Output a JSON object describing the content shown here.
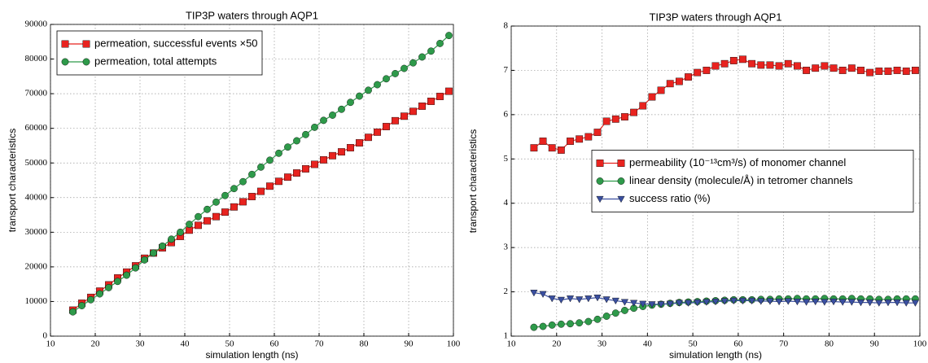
{
  "chart_data": [
    {
      "type": "line",
      "title": "TIP3P waters through AQP1",
      "xlabel": "simulation length (ns)",
      "ylabel": "transport characteristics",
      "x": [
        15,
        17,
        19,
        21,
        23,
        25,
        27,
        29,
        31,
        33,
        35,
        37,
        39,
        41,
        43,
        45,
        47,
        49,
        51,
        53,
        55,
        57,
        59,
        61,
        63,
        65,
        67,
        69,
        71,
        73,
        75,
        77,
        79,
        81,
        83,
        85,
        87,
        89,
        91,
        93,
        95,
        97,
        99
      ],
      "series": [
        {
          "name": "permeation, successful events ×50",
          "color": "#e8231f",
          "marker": "square",
          "values": [
            7500,
            9500,
            11200,
            13000,
            14800,
            16800,
            18500,
            20300,
            22500,
            24000,
            25500,
            27000,
            28800,
            30600,
            32000,
            33300,
            34500,
            35800,
            37300,
            38800,
            40300,
            41800,
            43300,
            44700,
            45900,
            47100,
            48300,
            49600,
            50900,
            52100,
            53200,
            54400,
            55800,
            57400,
            58900,
            60500,
            62200,
            63500,
            64900,
            66400,
            67800,
            69200,
            70700
          ]
        },
        {
          "name": "permeation, total attempts",
          "color": "#2e9a4a",
          "marker": "circle",
          "values": [
            7000,
            8800,
            10500,
            12200,
            14000,
            15800,
            17600,
            19700,
            22000,
            24000,
            26000,
            28000,
            30000,
            32300,
            34500,
            36600,
            38700,
            40600,
            42600,
            44600,
            46700,
            48800,
            50800,
            52800,
            54600,
            56400,
            58200,
            60300,
            62300,
            63800,
            65500,
            67500,
            69300,
            71000,
            72600,
            74300,
            75800,
            77300,
            78900,
            80600,
            82300,
            84500,
            86800
          ]
        }
      ],
      "xlim": [
        10,
        100
      ],
      "xticks": [
        10,
        20,
        30,
        40,
        50,
        60,
        70,
        80,
        90,
        100
      ],
      "ylim": [
        0,
        90000
      ],
      "yticks": [
        0,
        10000,
        20000,
        30000,
        40000,
        50000,
        60000,
        70000,
        80000,
        90000
      ],
      "grid": true,
      "legend": "upper left"
    },
    {
      "type": "line",
      "title": "TIP3P waters through AQP1",
      "xlabel": "simulation length (ns)",
      "ylabel": "transport characteristics",
      "x": [
        15,
        17,
        19,
        21,
        23,
        25,
        27,
        29,
        31,
        33,
        35,
        37,
        39,
        41,
        43,
        45,
        47,
        49,
        51,
        53,
        55,
        57,
        59,
        61,
        63,
        65,
        67,
        69,
        71,
        73,
        75,
        77,
        79,
        81,
        83,
        85,
        87,
        89,
        91,
        93,
        95,
        97,
        99
      ],
      "series": [
        {
          "name": "permeability (10⁻¹³cm³/s) of monomer channel",
          "color": "#e8231f",
          "marker": "square",
          "values": [
            5.25,
            5.4,
            5.25,
            5.2,
            5.4,
            5.45,
            5.5,
            5.6,
            5.85,
            5.9,
            5.95,
            6.05,
            6.2,
            6.4,
            6.55,
            6.7,
            6.75,
            6.85,
            6.95,
            7.0,
            7.1,
            7.15,
            7.22,
            7.25,
            7.15,
            7.12,
            7.12,
            7.1,
            7.15,
            7.1,
            7.0,
            7.05,
            7.1,
            7.05,
            7.0,
            7.05,
            7.0,
            6.95,
            6.98,
            6.98,
            7.0,
            6.98,
            7.0
          ]
        },
        {
          "name": "linear density (molecule/Å) in tetromer channels",
          "color": "#2e9a4a",
          "marker": "circle",
          "values": [
            1.2,
            1.22,
            1.25,
            1.27,
            1.28,
            1.3,
            1.33,
            1.38,
            1.45,
            1.52,
            1.58,
            1.63,
            1.67,
            1.7,
            1.72,
            1.74,
            1.76,
            1.77,
            1.78,
            1.79,
            1.8,
            1.81,
            1.82,
            1.82,
            1.82,
            1.83,
            1.83,
            1.84,
            1.84,
            1.85,
            1.84,
            1.84,
            1.85,
            1.84,
            1.84,
            1.85,
            1.84,
            1.84,
            1.83,
            1.83,
            1.84,
            1.84,
            1.84
          ]
        },
        {
          "name": "success ratio (%)",
          "color": "#3a4fa0",
          "marker": "triangle-down",
          "values": [
            1.98,
            1.95,
            1.85,
            1.82,
            1.85,
            1.83,
            1.85,
            1.87,
            1.83,
            1.8,
            1.77,
            1.75,
            1.73,
            1.72,
            1.72,
            1.73,
            1.75,
            1.75,
            1.76,
            1.77,
            1.78,
            1.79,
            1.8,
            1.8,
            1.8,
            1.79,
            1.79,
            1.78,
            1.79,
            1.78,
            1.77,
            1.78,
            1.77,
            1.78,
            1.77,
            1.77,
            1.76,
            1.76,
            1.75,
            1.76,
            1.76,
            1.75,
            1.75
          ]
        }
      ],
      "xlim": [
        10,
        100
      ],
      "xticks": [
        10,
        20,
        30,
        40,
        50,
        60,
        70,
        80,
        90,
        100
      ],
      "ylim": [
        1,
        8
      ],
      "yticks": [
        1,
        2,
        3,
        4,
        5,
        6,
        7,
        8
      ],
      "grid": true,
      "legend": "center right"
    }
  ]
}
